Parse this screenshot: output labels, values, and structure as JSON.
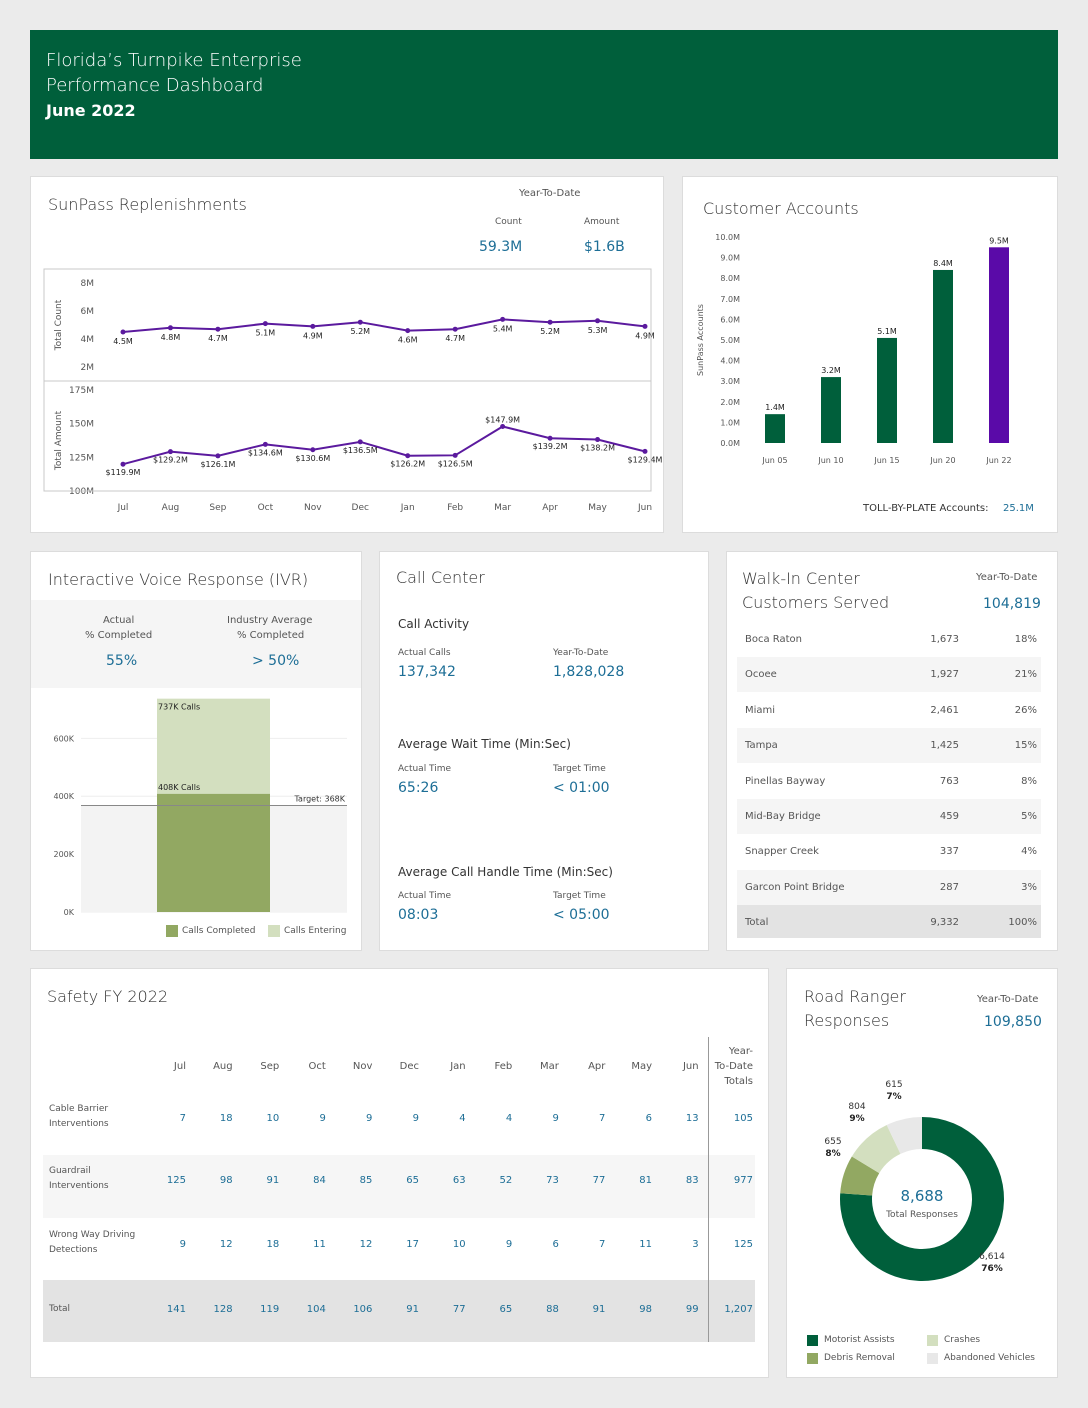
{
  "header": {
    "line1": "Florida’s Turnpike Enterprise",
    "line2": "Performance Dashboard",
    "date": "June 2022"
  },
  "sunpass": {
    "title": "SunPass Replenishments",
    "ytd_label": "Year-To-Date",
    "count_label": "Count",
    "amount_label": "Amount",
    "count_value": "59.3M",
    "amount_value": "$1.6B"
  },
  "customer_accounts": {
    "title": "Customer Accounts",
    "tbp_label": "TOLL-BY-PLATE Accounts:",
    "tbp_value": "25.1M"
  },
  "ivr": {
    "title": "Interactive Voice Response (IVR)",
    "actual_label_1": "Actual",
    "actual_label_2": "% Completed",
    "actual_value": "55%",
    "industry_label_1": "Industry Average",
    "industry_label_2": "% Completed",
    "industry_value": "> 50%",
    "legend_completed": "Calls Completed",
    "legend_entering": "Calls Entering"
  },
  "call_center": {
    "title": "Call Center",
    "activity_title": "Call Activity",
    "actual_calls_label": "Actual Calls",
    "actual_calls": "137,342",
    "ytd_label": "Year-To-Date",
    "ytd_calls": "1,828,028",
    "wait_title": "Average Wait Time (Min:Sec)",
    "wait_actual_label": "Actual Time",
    "wait_actual": "65:26",
    "wait_target_label": "Target Time",
    "wait_target": "< 01:00",
    "handle_title": "Average Call Handle Time (Min:Sec)",
    "handle_actual_label": "Actual Time",
    "handle_actual": "08:03",
    "handle_target_label": "Target Time",
    "handle_target": "< 05:00"
  },
  "walkin": {
    "title_1": "Walk-In Center",
    "title_2": "Customers Served",
    "ytd_label": "Year-To-Date",
    "ytd_value": "104,819",
    "rows": [
      {
        "name": "Boca Raton",
        "count": "1,673",
        "pct": "18%"
      },
      {
        "name": "Ocoee",
        "count": "1,927",
        "pct": "21%"
      },
      {
        "name": "Miami",
        "count": "2,461",
        "pct": "26%"
      },
      {
        "name": "Tampa",
        "count": "1,425",
        "pct": "15%"
      },
      {
        "name": "Pinellas Bayway",
        "count": "763",
        "pct": "8%"
      },
      {
        "name": "Mid-Bay Bridge",
        "count": "459",
        "pct": "5%"
      },
      {
        "name": "Snapper Creek",
        "count": "337",
        "pct": "4%"
      },
      {
        "name": "Garcon Point Bridge",
        "count": "287",
        "pct": "3%"
      },
      {
        "name": "Total",
        "count": "9,332",
        "pct": "100%"
      }
    ]
  },
  "safety": {
    "title": "Safety FY 2022",
    "months": [
      "Jul",
      "Aug",
      "Sep",
      "Oct",
      "Nov",
      "Dec",
      "Jan",
      "Feb",
      "Mar",
      "Apr",
      "May",
      "Jun"
    ],
    "ytd_header": [
      "Year-",
      "To-Date",
      "Totals"
    ],
    "rows": [
      {
        "label": [
          "Cable Barrier",
          "Interventions"
        ],
        "values": [
          "7",
          "18",
          "10",
          "9",
          "9",
          "9",
          "4",
          "4",
          "9",
          "7",
          "6",
          "13"
        ],
        "total": "105"
      },
      {
        "label": [
          "Guardrail",
          "Interventions"
        ],
        "values": [
          "125",
          "98",
          "91",
          "84",
          "85",
          "65",
          "63",
          "52",
          "73",
          "77",
          "81",
          "83"
        ],
        "total": "977"
      },
      {
        "label": [
          "Wrong Way Driving",
          "Detections"
        ],
        "values": [
          "9",
          "12",
          "18",
          "11",
          "12",
          "17",
          "10",
          "9",
          "6",
          "7",
          "11",
          "3"
        ],
        "total": "125"
      },
      {
        "label": [
          "Total"
        ],
        "values": [
          "141",
          "128",
          "119",
          "104",
          "106",
          "91",
          "77",
          "65",
          "88",
          "91",
          "98",
          "99"
        ],
        "total": "1,207"
      }
    ]
  },
  "road_ranger": {
    "title_1": "Road Ranger",
    "title_2": "Responses",
    "ytd_label": "Year-To-Date",
    "ytd_value": "109,850"
  },
  "chart_data": [
    {
      "id": "sunpass-count",
      "type": "line",
      "categories": [
        "Jul",
        "Aug",
        "Sep",
        "Oct",
        "Nov",
        "Dec",
        "Jan",
        "Feb",
        "Mar",
        "Apr",
        "May",
        "Jun"
      ],
      "values": [
        4.5,
        4.8,
        4.7,
        5.1,
        4.9,
        5.2,
        4.6,
        4.7,
        5.4,
        5.2,
        5.3,
        4.9
      ],
      "labels": [
        "4.5M",
        "4.8M",
        "4.7M",
        "5.1M",
        "4.9M",
        "5.2M",
        "4.6M",
        "4.7M",
        "5.4M",
        "5.2M",
        "5.3M",
        "4.9M"
      ],
      "ylabel": "Total Count",
      "ylim": [
        1,
        9
      ],
      "yticks": [
        2,
        4,
        6,
        8
      ],
      "ytick_labels": [
        "2M",
        "4M",
        "6M",
        "8M"
      ],
      "color": "#5b1a9e"
    },
    {
      "id": "sunpass-amount",
      "type": "line",
      "categories": [
        "Jul",
        "Aug",
        "Sep",
        "Oct",
        "Nov",
        "Dec",
        "Jan",
        "Feb",
        "Mar",
        "Apr",
        "May",
        "Jun"
      ],
      "values": [
        119.9,
        129.2,
        126.1,
        134.6,
        130.6,
        136.5,
        126.2,
        126.5,
        147.9,
        139.2,
        138.2,
        129.4
      ],
      "labels": [
        "$119.9M",
        "$129.2M",
        "$126.1M",
        "$134.6M",
        "$130.6M",
        "$136.5M",
        "$126.2M",
        "$126.5M",
        "$147.9M",
        "$139.2M",
        "$138.2M",
        "$129.4M"
      ],
      "ylabel": "Total Amount",
      "ylim": [
        100,
        175
      ],
      "yticks": [
        100,
        125,
        150,
        175
      ],
      "ytick_labels": [
        "100M",
        "125M",
        "150M",
        "175M"
      ],
      "color": "#5b1a9e"
    },
    {
      "id": "customer-accounts",
      "type": "bar",
      "categories": [
        "Jun 05",
        "Jun 10",
        "Jun 15",
        "Jun 20",
        "Jun 22"
      ],
      "values": [
        1.4,
        3.2,
        5.1,
        8.4,
        9.5
      ],
      "labels": [
        "1.4M",
        "3.2M",
        "5.1M",
        "8.4M",
        "9.5M"
      ],
      "colors": [
        "#005f3b",
        "#005f3b",
        "#005f3b",
        "#005f3b",
        "#5a0aa8"
      ],
      "ylabel": "SunPass Accounts",
      "ylim": [
        0,
        10
      ],
      "ytick_labels": [
        "0.0M",
        "1.0M",
        "2.0M",
        "3.0M",
        "4.0M",
        "5.0M",
        "6.0M",
        "7.0M",
        "8.0M",
        "9.0M",
        "10.0M"
      ]
    },
    {
      "id": "ivr-calls",
      "type": "bar",
      "series": [
        {
          "name": "Calls Completed",
          "value": 408,
          "label": "408K Calls",
          "color": "#92a862"
        },
        {
          "name": "Calls Entering",
          "value": 737,
          "label": "737K Calls",
          "color": "#d3dfbf"
        }
      ],
      "target": 368,
      "target_label": "Target: 368K",
      "ylim": [
        0,
        760
      ],
      "yticks": [
        0,
        200,
        400,
        600
      ],
      "ytick_labels": [
        "0K",
        "200K",
        "400K",
        "600K"
      ]
    },
    {
      "id": "road-ranger-donut",
      "type": "pie",
      "center_value": "8,688",
      "center_label": "Total Responses",
      "slices": [
        {
          "name": "Motorist Assists",
          "value": 6614,
          "label": "6,614",
          "pct": "76%",
          "color": "#005f3b"
        },
        {
          "name": "Debris Removal",
          "value": 655,
          "label": "655",
          "pct": "8%",
          "color": "#92a862"
        },
        {
          "name": "Crashes",
          "value": 804,
          "label": "804",
          "pct": "9%",
          "color": "#d3dfbf"
        },
        {
          "name": "Abandoned Vehicles",
          "value": 615,
          "label": "615",
          "pct": "7%",
          "color": "#e8e8e8"
        }
      ]
    }
  ]
}
